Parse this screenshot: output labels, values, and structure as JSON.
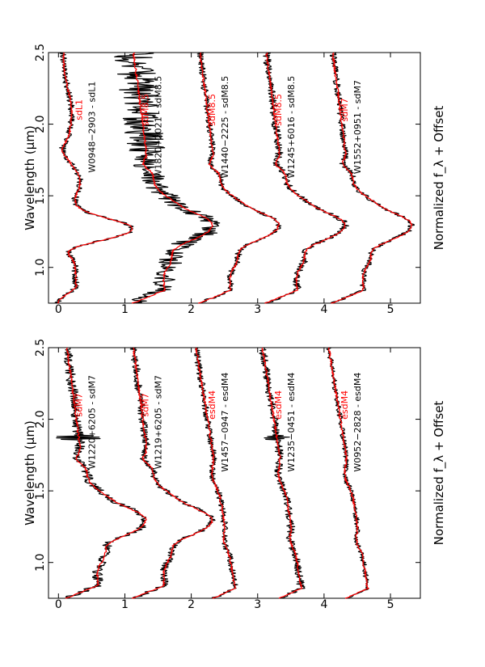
{
  "colors": {
    "object": "#000000",
    "template": "#ff0000"
  },
  "chart_data": [
    {
      "type": "line",
      "panel": "left",
      "xlabel": "Wavelength (μm)",
      "ylabel": "Normalized f_λ + Offset",
      "xlim": [
        0.75,
        2.5
      ],
      "ylim": [
        -0.15,
        5.45
      ],
      "x_ticks": [
        1.0,
        1.5,
        2.0,
        2.5
      ],
      "x_tick_labels": [
        "1.0",
        "1.5",
        "2.0",
        "2.5"
      ],
      "y_ticks": [
        0,
        1,
        2,
        3,
        4,
        5
      ],
      "y_tick_labels": [
        "0",
        "1",
        "2",
        "3",
        "4",
        "5"
      ],
      "spectra": [
        {
          "object_label": "W0952−2828 - esdM4",
          "template_label": "esdM4",
          "offset": 4.0,
          "shape": "esdM",
          "noise": 0.04,
          "spike": 0
        },
        {
          "object_label": "W1235−0451 - esdM4",
          "template_label": "esdM4",
          "offset": 3.0,
          "shape": "esdM",
          "noise": 0.06,
          "spike": 0.15
        },
        {
          "object_label": "W1457−0947 - esdM4",
          "template_label": "esdM4",
          "offset": 2.0,
          "shape": "esdM",
          "noise": 0.05,
          "spike": 0
        },
        {
          "object_label": "W1219+6205 - sdM7",
          "template_label": "sdM7",
          "offset": 1.0,
          "shape": "sdM",
          "noise": 0.06,
          "spike": 0
        },
        {
          "object_label": "W1220+6205 - sdM7",
          "template_label": "sdM7",
          "offset": 0.0,
          "shape": "sdM",
          "noise": 0.08,
          "spike": 0.3
        }
      ]
    },
    {
      "type": "line",
      "panel": "right",
      "xlabel": "Wavelength (μm)",
      "ylabel": "Normalized f_λ + Offset",
      "xlim": [
        0.75,
        2.5
      ],
      "ylim": [
        -0.15,
        5.45
      ],
      "x_ticks": [
        1.0,
        1.5,
        2.0,
        2.5
      ],
      "x_tick_labels": [
        "1.0",
        "1.5",
        "2.0",
        "2.5"
      ],
      "y_ticks": [
        0,
        1,
        2,
        3,
        4,
        5
      ],
      "y_tick_labels": [
        "0",
        "1",
        "2",
        "3",
        "4",
        "5"
      ],
      "spectra": [
        {
          "object_label": "W1552+0951 - sdM7",
          "template_label": "sdM7",
          "offset": 4.0,
          "shape": "sdM",
          "noise": 0.05,
          "spike": 0
        },
        {
          "object_label": "W1245+6016 - sdM8.5",
          "template_label": "sdM8.5",
          "offset": 3.0,
          "shape": "sdM",
          "noise": 0.06,
          "spike": 0
        },
        {
          "object_label": "W1440−2225 - sdM8.5",
          "template_label": "sdM8.5",
          "offset": 2.0,
          "shape": "sdM",
          "noise": 0.05,
          "spike": 0
        },
        {
          "object_label": "W1820+2021 - sdM8.5",
          "template_label": "sdM8.5",
          "offset": 1.0,
          "shape": "sdM",
          "noise": 0.3,
          "spike": 0
        },
        {
          "object_label": "W0948−2903 - sdL1",
          "template_label": "sdL1",
          "offset": 0.0,
          "shape": "sdL",
          "noise": 0.05,
          "spike": 0
        }
      ]
    }
  ]
}
